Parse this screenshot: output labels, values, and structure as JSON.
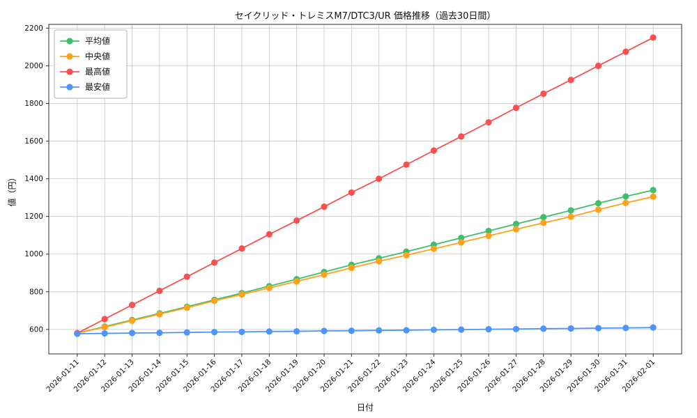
{
  "chart_data": {
    "type": "line",
    "title": "セイクリッド・トレミスM7/DTC3/UR 価格推移（過去30日間）",
    "xlabel": "日付",
    "ylabel": "値（円）",
    "x": [
      "2026-01-11",
      "2026-01-12",
      "2026-01-13",
      "2026-01-14",
      "2026-01-15",
      "2026-01-16",
      "2026-01-17",
      "2026-01-18",
      "2026-01-19",
      "2026-01-20",
      "2026-01-21",
      "2026-01-22",
      "2026-01-23",
      "2026-01-24",
      "2026-01-25",
      "2026-01-26",
      "2026-01-27",
      "2026-01-28",
      "2026-01-29",
      "2026-01-30",
      "2026-01-31",
      "2026-02-01"
    ],
    "series": [
      {
        "name": "平均値",
        "color": "#3fbf6b",
        "values": [
          580,
          615,
          650,
          685,
          720,
          757,
          793,
          830,
          867,
          905,
          943,
          978,
          1013,
          1050,
          1086,
          1123,
          1160,
          1196,
          1232,
          1270,
          1306,
          1340
        ]
      },
      {
        "name": "中央値",
        "color": "#ffa11a",
        "values": [
          580,
          612,
          646,
          681,
          715,
          752,
          786,
          820,
          855,
          891,
          927,
          962,
          994,
          1028,
          1062,
          1097,
          1132,
          1166,
          1199,
          1236,
          1272,
          1305
        ]
      },
      {
        "name": "最高値",
        "color": "#f8514f",
        "values": [
          580,
          655,
          730,
          805,
          880,
          955,
          1030,
          1105,
          1178,
          1252,
          1327,
          1400,
          1475,
          1550,
          1625,
          1700,
          1777,
          1852,
          1925,
          2000,
          2075,
          2150
        ]
      },
      {
        "name": "最安値",
        "color": "#4d94ff",
        "values": [
          577,
          579,
          581,
          582,
          584,
          586,
          587,
          589,
          590,
          592,
          593,
          595,
          596,
          598,
          599,
          601,
          602,
          604,
          605,
          607,
          608,
          610
        ]
      }
    ],
    "yticks": [
      600,
      800,
      1000,
      1200,
      1400,
      1600,
      1800,
      2000,
      2200
    ],
    "ylim": [
      470,
      2220
    ],
    "grid": true,
    "legend_position": "upper-left"
  }
}
